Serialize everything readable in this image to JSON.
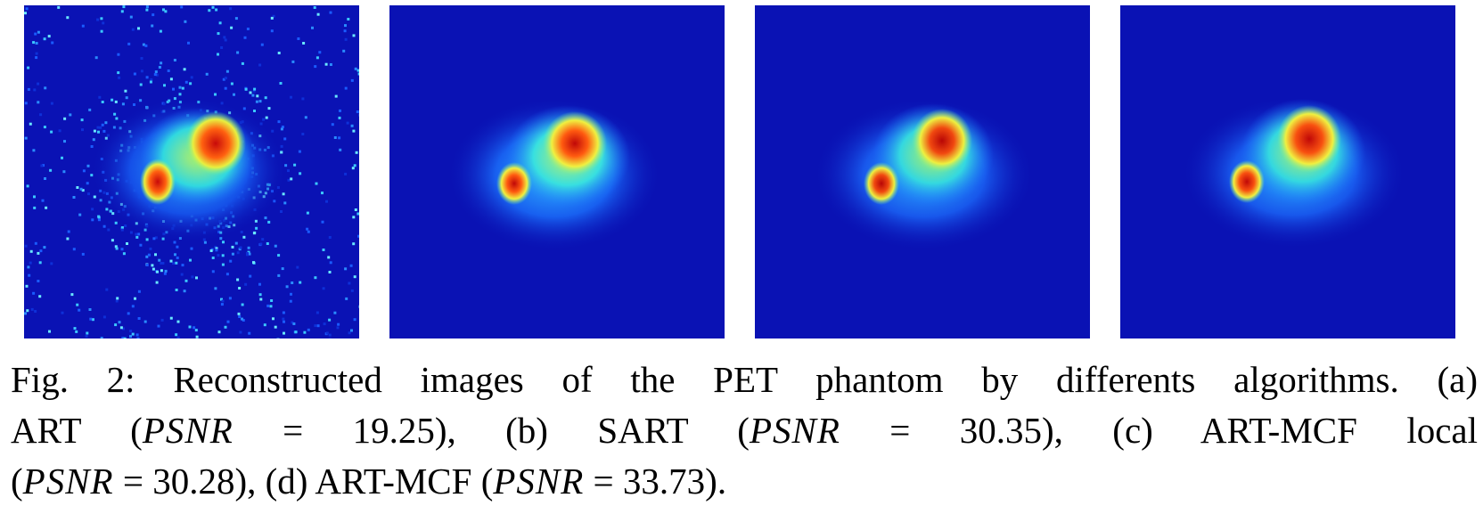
{
  "figure": {
    "panels": [
      {
        "id": "a",
        "method": "ART",
        "psnr": "19.25",
        "noise": "high"
      },
      {
        "id": "b",
        "method": "SART",
        "psnr": "30.35",
        "noise": "low"
      },
      {
        "id": "c",
        "method": "ART-MCF local",
        "psnr": "30.28",
        "noise": "low"
      },
      {
        "id": "d",
        "method": "ART-MCF",
        "psnr": "33.73",
        "noise": "low"
      }
    ],
    "colors": {
      "background": "#0a12b4",
      "low": "#1a5cff",
      "mid": "#28d4ff",
      "high": "#e8f040",
      "peak": "#c81010"
    }
  },
  "caption": {
    "line1": "Fig. 2: Reconstructed images of the PET phantom by differents algorithms. (a)",
    "line2_parts": [
      "ART (",
      "PSNR",
      " = 19.25), (b) SART (",
      "PSNR",
      " = 30.35), (c) ART-MCF local"
    ],
    "line3_parts": [
      "(",
      "PSNR",
      " = 30.28), (d) ART-MCF (",
      "PSNR",
      " = 33.73)."
    ]
  }
}
